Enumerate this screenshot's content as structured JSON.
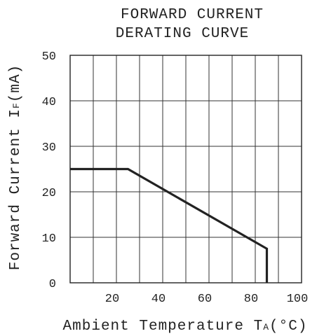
{
  "chart_data": {
    "type": "line",
    "title_lines": [
      "FORWARD CURRENT",
      "DERATING CURVE"
    ],
    "xlabel": {
      "main": "Ambient Temperature T",
      "sub": "A",
      "unit": "(°C)"
    },
    "ylabel": {
      "main": "Forward Current I",
      "sub": "F",
      "unit": "(mA)"
    },
    "xlim": [
      0,
      100
    ],
    "ylim": [
      0,
      50
    ],
    "xticks": [
      20,
      40,
      60,
      80,
      100
    ],
    "yticks": [
      0,
      10,
      20,
      30,
      40,
      50
    ],
    "grid": true,
    "series": [
      {
        "x": [
          0,
          25,
          85,
          85
        ],
        "y": [
          25,
          25,
          7.5,
          0
        ]
      }
    ]
  }
}
